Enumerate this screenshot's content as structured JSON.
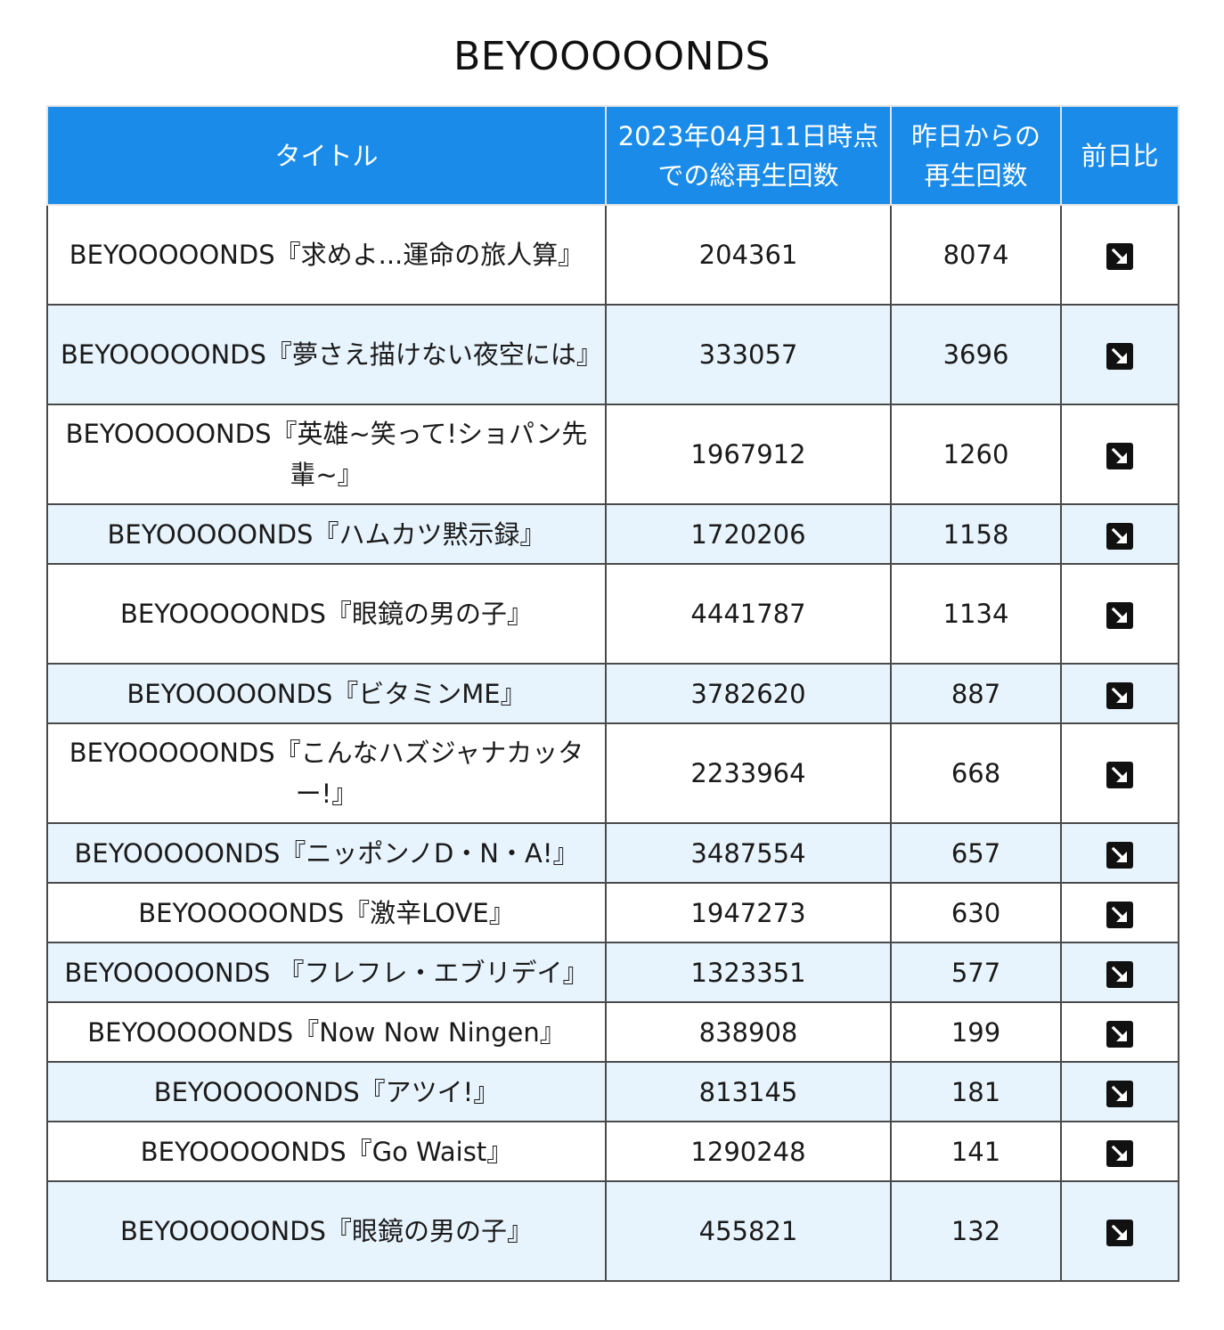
{
  "page_title": "BEYOOOOONDS",
  "table": {
    "headers": {
      "title": "タイトル",
      "total": "2023年04月11日時点での総再生回数",
      "daily": "昨日からの再生回数",
      "trend": "前日比"
    },
    "rows": [
      {
        "title": "BEYOOOOONDS『求めよ...運命の旅人算』",
        "total": "204361",
        "daily": "8074",
        "trend_icon": "arrow-down-right-icon"
      },
      {
        "title": "BEYOOOOONDS『夢さえ描けない夜空には』",
        "total": "333057",
        "daily": "3696",
        "trend_icon": "arrow-down-right-icon"
      },
      {
        "title": "BEYOOOOONDS『英雄~笑って!ショパン先輩~』",
        "total": "1967912",
        "daily": "1260",
        "trend_icon": "arrow-down-right-icon"
      },
      {
        "title": "BEYOOOOONDS『ハムカツ黙示録』",
        "total": "1720206",
        "daily": "1158",
        "trend_icon": "arrow-down-right-icon"
      },
      {
        "title": "BEYOOOOONDS『眼鏡の男の子』",
        "total": "4441787",
        "daily": "1134",
        "trend_icon": "arrow-down-right-icon"
      },
      {
        "title": "BEYOOOOONDS『ビタミンME』",
        "total": "3782620",
        "daily": "887",
        "trend_icon": "arrow-down-right-icon"
      },
      {
        "title": "BEYOOOOONDS『こんなハズジャナカッター!』",
        "total": "2233964",
        "daily": "668",
        "trend_icon": "arrow-down-right-icon"
      },
      {
        "title": "BEYOOOOONDS『ニッポンノD・N・A!』",
        "total": "3487554",
        "daily": "657",
        "trend_icon": "arrow-down-right-icon"
      },
      {
        "title": "BEYOOOOONDS『激辛LOVE』",
        "total": "1947273",
        "daily": "630",
        "trend_icon": "arrow-down-right-icon"
      },
      {
        "title": "BEYOOOOONDS 『フレフレ・エブリデイ』",
        "total": "1323351",
        "daily": "577",
        "trend_icon": "arrow-down-right-icon"
      },
      {
        "title": "BEYOOOOONDS『Now Now Ningen』",
        "total": "838908",
        "daily": "199",
        "trend_icon": "arrow-down-right-icon"
      },
      {
        "title": "BEYOOOOONDS『アツイ!』",
        "total": "813145",
        "daily": "181",
        "trend_icon": "arrow-down-right-icon"
      },
      {
        "title": "BEYOOOOONDS『Go Waist』",
        "total": "1290248",
        "daily": "141",
        "trend_icon": "arrow-down-right-icon"
      },
      {
        "title": "BEYOOOOONDS『眼鏡の男の子』",
        "total": "455821",
        "daily": "132",
        "trend_icon": "arrow-down-right-icon"
      }
    ]
  },
  "colors": {
    "header_bg": "#1a8be8",
    "stripe_bg": "#e8f4fd"
  }
}
